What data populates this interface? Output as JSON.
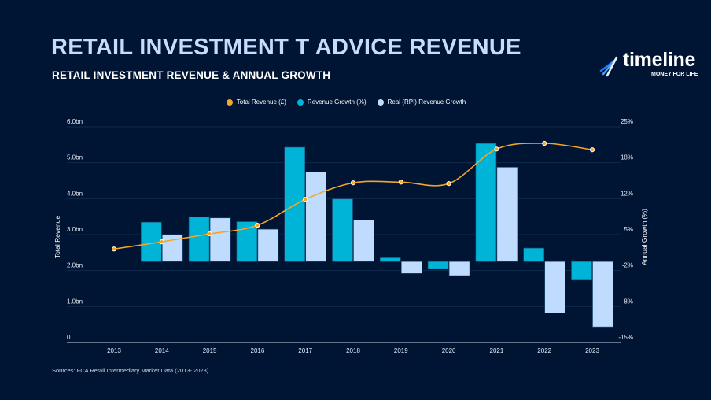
{
  "header": {
    "title": "RETAIL INVESTMENT T ADVICE REVENUE",
    "subtitle": "RETAIL INVESTMENT REVENUE & ANNUAL GROWTH"
  },
  "logo": {
    "word": "timeline",
    "tagline": "MONEY FOR LIFE"
  },
  "source": "Sources: FCA Retail Intermediary Market Data (2013- 2023)",
  "colors": {
    "background": "#001533",
    "revenue": "#f5a623",
    "growth": "#00b4d8",
    "real_growth": "#bfdcff",
    "title": "#c6dcff"
  },
  "chart_data": {
    "type": "bar+line",
    "categories": [
      "2013",
      "2014",
      "2015",
      "2016",
      "2017",
      "2018",
      "2019",
      "2020",
      "2021",
      "2022",
      "2023"
    ],
    "series": [
      {
        "name": "Total Revenue (£)",
        "type": "line",
        "axis": "left",
        "values": [
          2.6,
          2.8,
          3.02,
          3.26,
          3.98,
          4.44,
          4.46,
          4.42,
          5.38,
          5.54,
          5.36
        ]
      },
      {
        "name": "Revenue Growth (%)",
        "type": "bar",
        "axis": "right",
        "values": [
          null,
          7.3,
          8.3,
          7.4,
          21.2,
          11.6,
          0.7,
          -1.3,
          21.9,
          2.5,
          -3.3
        ]
      },
      {
        "name": "Real (RPI) Revenue Growth",
        "type": "bar",
        "axis": "right",
        "values": [
          null,
          5.0,
          8.1,
          6.0,
          16.6,
          7.7,
          -2.2,
          -2.6,
          17.5,
          -9.5,
          -12.1
        ]
      }
    ],
    "ylabel": "Total Revenue",
    "y2label": "Annual Growth (%)",
    "ylim": [
      0,
      6
    ],
    "y2lim": [
      -15,
      25
    ],
    "yticks": [
      "0",
      "1.0bn",
      "2.0bn",
      "3.0bn",
      "4.0bn",
      "5.0bn",
      "6.0bn"
    ],
    "y2ticks": [
      "-15%",
      "-8%",
      "-2%",
      "5%",
      "12%",
      "18%",
      "25%"
    ],
    "grid": true,
    "legend": "top-center"
  }
}
